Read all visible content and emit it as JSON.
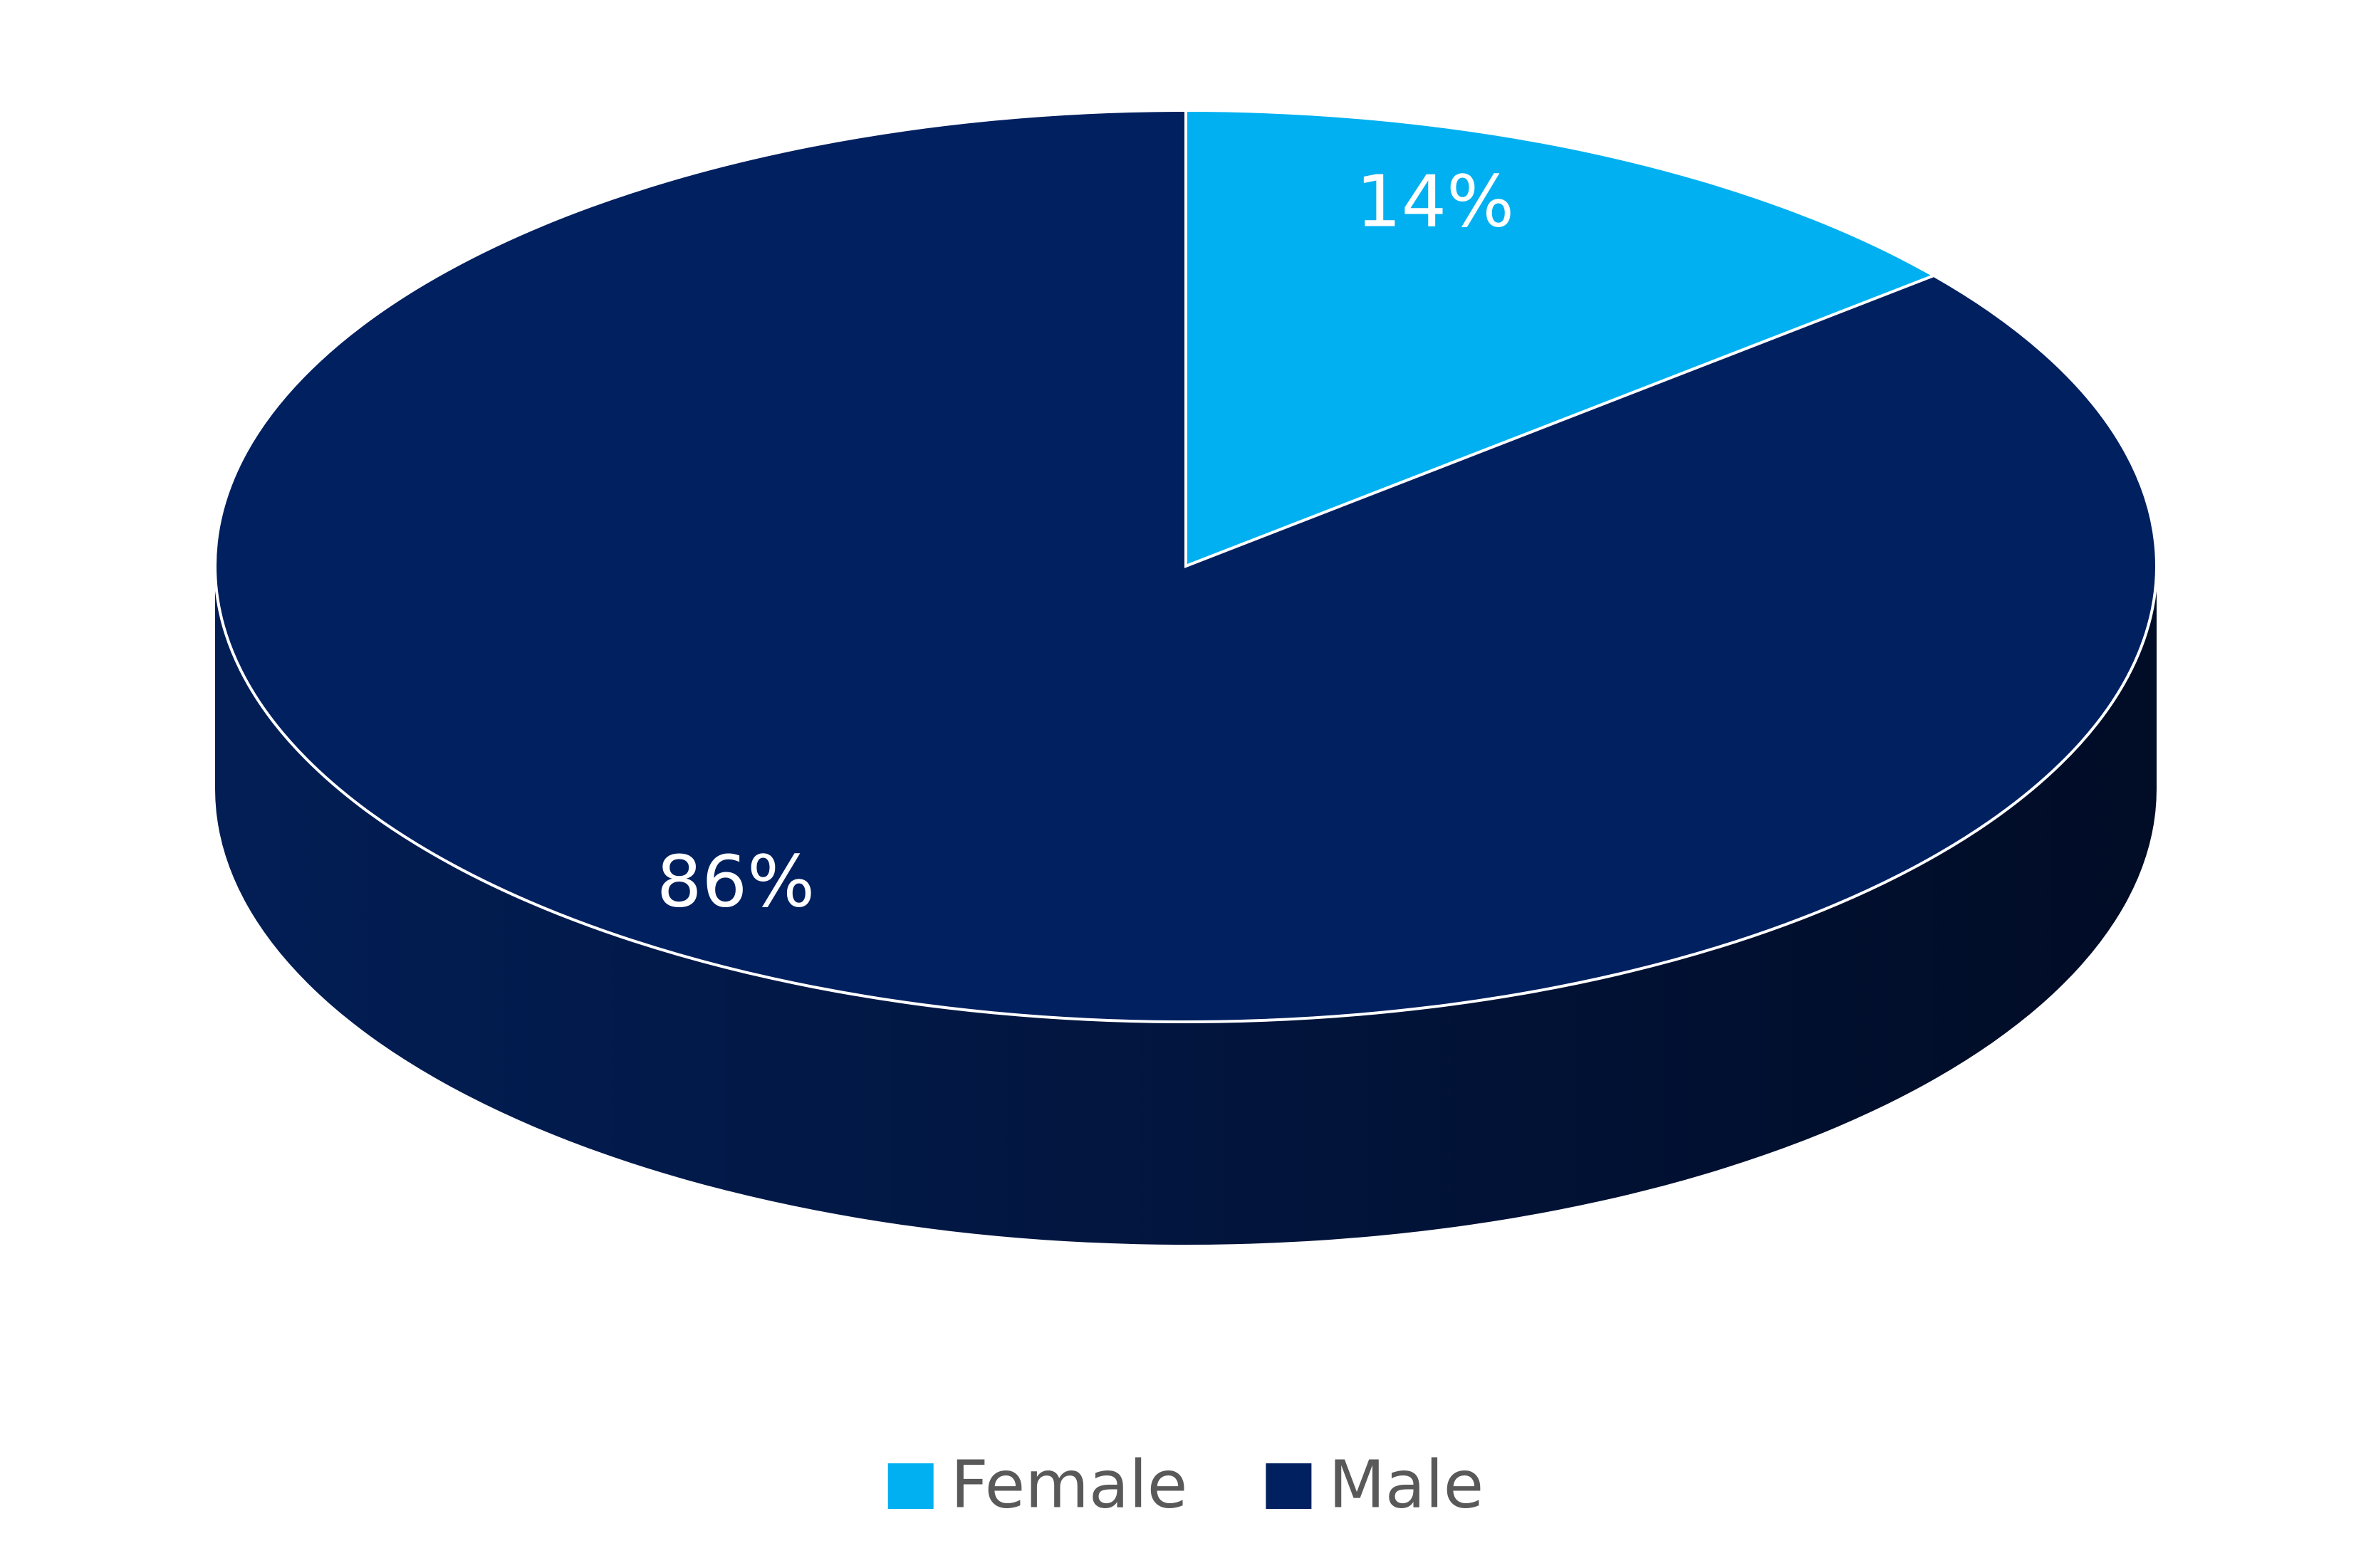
{
  "chart_data": {
    "type": "pie",
    "categories": [
      "Female",
      "Male"
    ],
    "values": [
      14,
      86
    ],
    "value_labels": [
      "14%",
      "86%"
    ],
    "colors": [
      "#00b0f0",
      "#002060"
    ],
    "legend": "bottom"
  }
}
